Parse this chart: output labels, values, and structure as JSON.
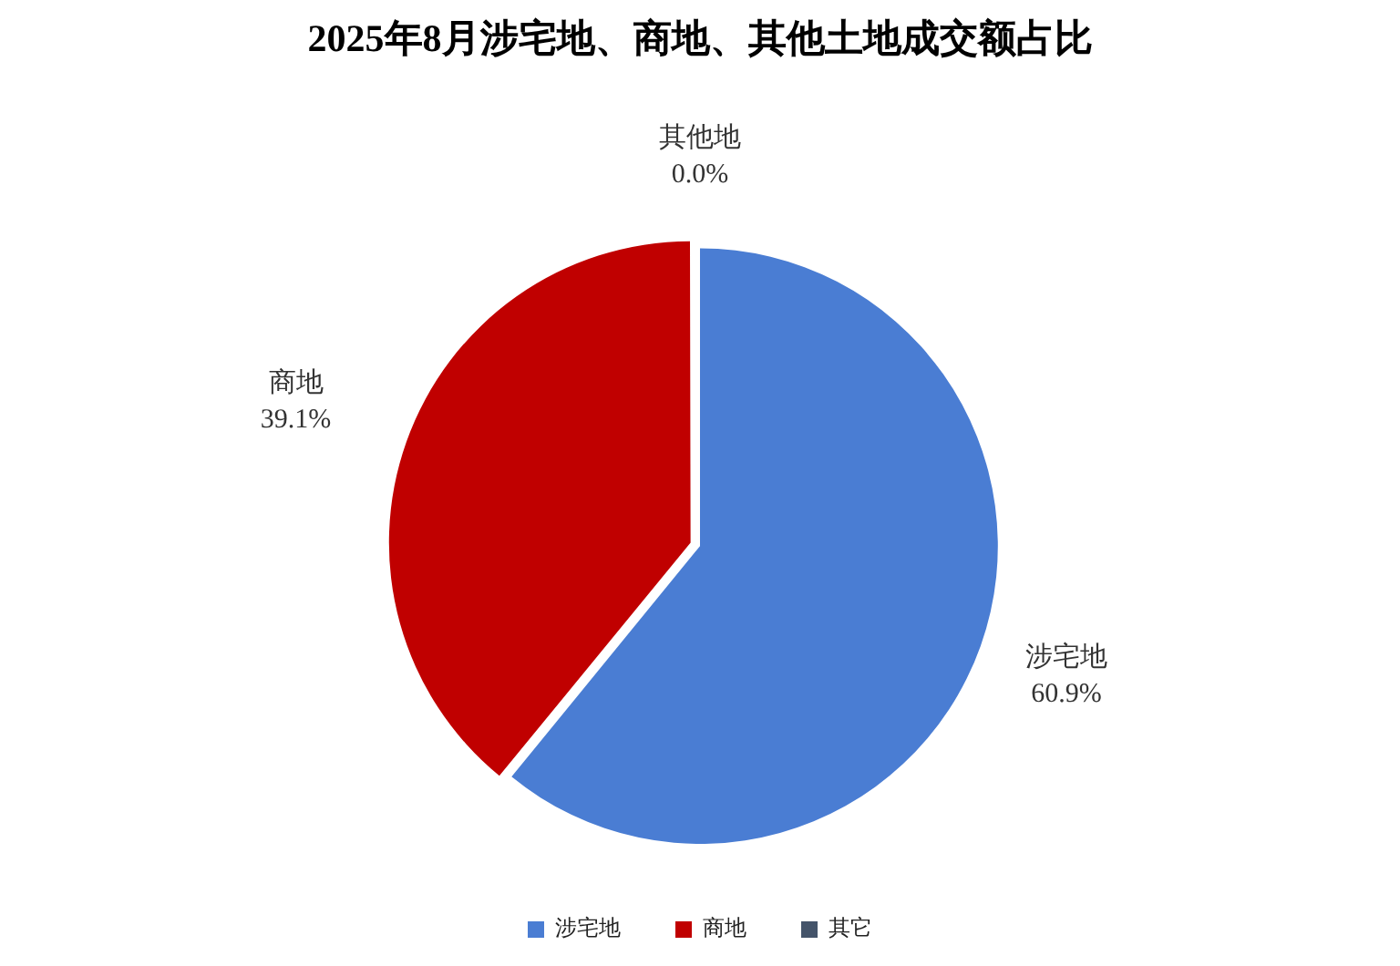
{
  "chart_data": {
    "type": "pie",
    "title": "2025年8月涉宅地、商地、其他土地成交额占比",
    "categories": [
      "涉宅地",
      "商地",
      "其它"
    ],
    "values": [
      60.9,
      39.1,
      0.0
    ],
    "colors": [
      "#4a7dd3",
      "#c00000",
      "#44546a"
    ],
    "value_labels": [
      "涉宅地\n60.9%",
      "商地\n39.1%",
      "其他地\n0.0%"
    ],
    "legend": "bottom"
  }
}
